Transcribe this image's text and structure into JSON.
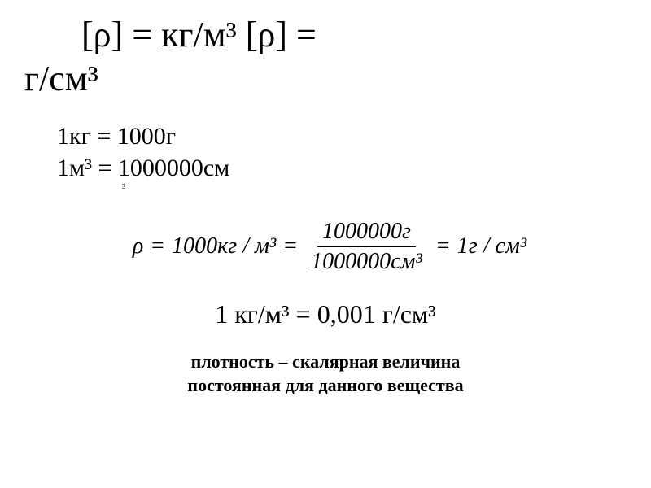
{
  "title": {
    "line1": "[ρ] = кг/м³   [ρ] =",
    "line2": "г/см³"
  },
  "conversions": {
    "mass": "1кг   = 1000г",
    "volume": "1м³ = 1000000см",
    "volume_exp": "³"
  },
  "formula": {
    "lhs": "ρ",
    "eq1": "=",
    "val1": "1000кг / м³",
    "eq2": "=",
    "frac_num": "1000000г",
    "frac_den": "1000000см³",
    "eq3": "=",
    "val3": "1г / см³"
  },
  "result": "1 кг/м³ = 0,001 г/см³",
  "definition": {
    "line1": "плотность – скалярная величина",
    "line2": "постоянная для данного вещества"
  },
  "colors": {
    "text": "#000000",
    "background": "#ffffff"
  },
  "fonts": {
    "title_size": 44,
    "conv_size": 30,
    "formula_size": 28,
    "result_size": 32,
    "def_size": 22
  }
}
